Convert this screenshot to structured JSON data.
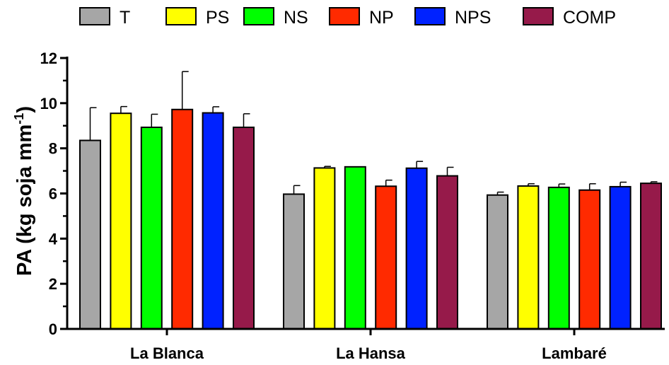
{
  "chart_data": {
    "type": "bar",
    "categories": [
      "La Blanca",
      "La Hansa",
      "Lambaré"
    ],
    "series": [
      {
        "name": "T",
        "color": "#a6a6a6",
        "values": [
          8.35,
          5.97,
          5.93
        ],
        "errors": [
          1.45,
          0.38,
          0.13
        ]
      },
      {
        "name": "PS",
        "color": "#ffff00",
        "values": [
          9.55,
          7.13,
          6.33
        ],
        "errors": [
          0.3,
          0.07,
          0.1
        ]
      },
      {
        "name": "NS",
        "color": "#00ff00",
        "values": [
          8.93,
          7.18,
          6.27
        ],
        "errors": [
          0.58,
          0.0,
          0.15
        ]
      },
      {
        "name": "NP",
        "color": "#ff2a00",
        "values": [
          9.72,
          6.32,
          6.15
        ],
        "errors": [
          1.68,
          0.27,
          0.28
        ]
      },
      {
        "name": "NPS",
        "color": "#0022ff",
        "values": [
          9.57,
          7.12,
          6.3
        ],
        "errors": [
          0.27,
          0.3,
          0.2
        ]
      },
      {
        "name": "COMP",
        "color": "#961a4a",
        "values": [
          8.93,
          6.78,
          6.45
        ],
        "errors": [
          0.6,
          0.38,
          0.07
        ]
      }
    ],
    "ylim": [
      0,
      12
    ],
    "yticks": [
      0,
      2,
      4,
      6,
      8,
      10,
      12
    ],
    "ylabel_main": "PA (kg soja mm",
    "ylabel_sup": "-1",
    "ylabel_end": ")",
    "xlabel": "",
    "title": "",
    "legend_position": "top",
    "grid": false
  }
}
